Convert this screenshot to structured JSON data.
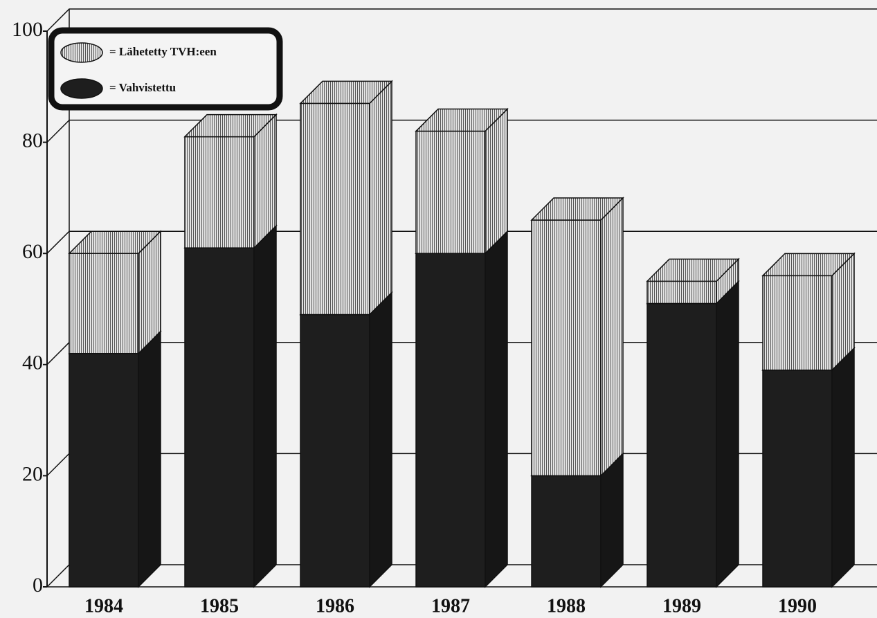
{
  "chart_data": {
    "type": "bar3d_stacked",
    "categories": [
      "1984",
      "1985",
      "1986",
      "1987",
      "1988",
      "1989",
      "1990"
    ],
    "series": [
      {
        "name": "= Vahvistettu",
        "color": "#1e1e1e",
        "values": [
          42,
          61,
          49,
          60,
          20,
          51,
          39
        ]
      },
      {
        "name": "= Lähetetty TVH:een",
        "color": "#d8d8d8",
        "values": [
          18,
          20,
          38,
          22,
          46,
          4,
          17
        ]
      }
    ],
    "ylim": [
      0,
      100
    ],
    "yticks": [
      0,
      20,
      40,
      60,
      80,
      100
    ],
    "grid": true
  }
}
